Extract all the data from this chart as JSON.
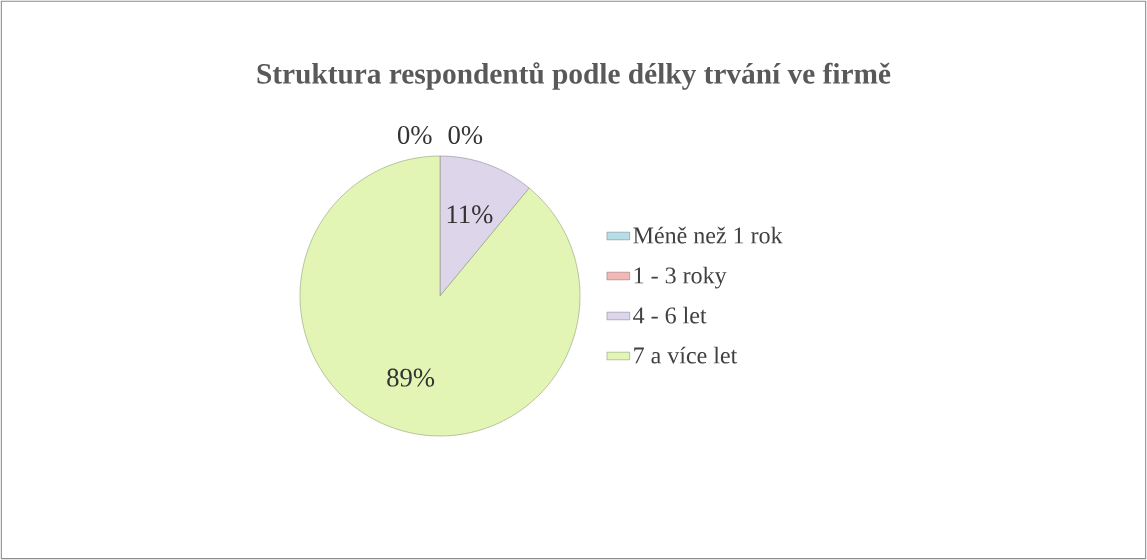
{
  "chart_data": {
    "type": "pie",
    "title": "Struktura respondentů podle délky trvání ve firmě",
    "categories": [
      "Méně než 1 rok",
      "1 - 3 roky",
      "4 - 6 let",
      "7 a více let"
    ],
    "values": [
      0,
      0,
      11,
      89
    ],
    "colors": [
      "#b7dee8",
      "#f2b8b6",
      "#ddd5ea",
      "#e2f5b5"
    ],
    "value_labels": [
      "0%",
      "0%",
      "11%",
      "89%"
    ],
    "legend": "right"
  }
}
